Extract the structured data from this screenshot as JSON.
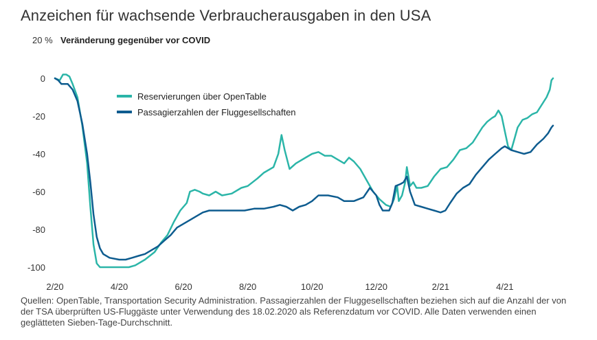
{
  "chart_data": {
    "type": "line",
    "title": "Anzeichen für wachsende Verbraucherausgaben in den USA",
    "ylabel_unit": "20 %",
    "subtitle": "Veränderung gegenüber vor COVID",
    "ylim": [
      -100,
      20
    ],
    "yticks": [
      {
        "value": 0,
        "label": "0"
      },
      {
        "value": -20,
        "label": "-20"
      },
      {
        "value": -40,
        "label": "-40"
      },
      {
        "value": -60,
        "label": "-60"
      },
      {
        "value": -80,
        "label": "-80"
      },
      {
        "value": -100,
        "label": "-100"
      }
    ],
    "xlim": [
      0,
      15.5
    ],
    "xticks": [
      {
        "value": 0,
        "label": "2/20"
      },
      {
        "value": 2,
        "label": "4/20"
      },
      {
        "value": 4,
        "label": "6/20"
      },
      {
        "value": 6,
        "label": "8/20"
      },
      {
        "value": 8,
        "label": "10/20"
      },
      {
        "value": 10,
        "label": "12/20"
      },
      {
        "value": 12,
        "label": "2/21"
      },
      {
        "value": 14,
        "label": "4/21"
      }
    ],
    "series": [
      {
        "name": "Reservierungen über OpenTable",
        "color": "#2bb5a8",
        "points": [
          [
            0,
            0
          ],
          [
            0.15,
            -1
          ],
          [
            0.25,
            2
          ],
          [
            0.35,
            2
          ],
          [
            0.45,
            1
          ],
          [
            0.55,
            -3
          ],
          [
            0.7,
            -10
          ],
          [
            0.85,
            -25
          ],
          [
            1.0,
            -45
          ],
          [
            1.1,
            -68
          ],
          [
            1.2,
            -88
          ],
          [
            1.3,
            -98
          ],
          [
            1.4,
            -100
          ],
          [
            1.7,
            -100
          ],
          [
            2.0,
            -100
          ],
          [
            2.3,
            -100
          ],
          [
            2.5,
            -99
          ],
          [
            2.8,
            -96
          ],
          [
            3.1,
            -92
          ],
          [
            3.3,
            -87
          ],
          [
            3.5,
            -83
          ],
          [
            3.7,
            -76
          ],
          [
            3.9,
            -70
          ],
          [
            4.1,
            -66
          ],
          [
            4.2,
            -60
          ],
          [
            4.35,
            -59
          ],
          [
            4.5,
            -60
          ],
          [
            4.6,
            -61
          ],
          [
            4.8,
            -62
          ],
          [
            5.0,
            -60
          ],
          [
            5.2,
            -62
          ],
          [
            5.5,
            -61
          ],
          [
            5.8,
            -58
          ],
          [
            6.0,
            -57
          ],
          [
            6.3,
            -53
          ],
          [
            6.5,
            -50
          ],
          [
            6.8,
            -47
          ],
          [
            6.95,
            -40
          ],
          [
            7.05,
            -30
          ],
          [
            7.15,
            -38
          ],
          [
            7.3,
            -48
          ],
          [
            7.5,
            -45
          ],
          [
            7.8,
            -42
          ],
          [
            8.0,
            -40
          ],
          [
            8.2,
            -39
          ],
          [
            8.4,
            -41
          ],
          [
            8.6,
            -41
          ],
          [
            8.8,
            -43
          ],
          [
            9.0,
            -45
          ],
          [
            9.15,
            -42
          ],
          [
            9.3,
            -44
          ],
          [
            9.5,
            -48
          ],
          [
            9.7,
            -54
          ],
          [
            9.9,
            -60
          ],
          [
            10.1,
            -64
          ],
          [
            10.3,
            -67
          ],
          [
            10.45,
            -68
          ],
          [
            10.55,
            -64
          ],
          [
            10.65,
            -57
          ],
          [
            10.7,
            -65
          ],
          [
            10.8,
            -62
          ],
          [
            10.9,
            -55
          ],
          [
            10.95,
            -47
          ],
          [
            11.05,
            -57
          ],
          [
            11.15,
            -55
          ],
          [
            11.25,
            -58
          ],
          [
            11.4,
            -58
          ],
          [
            11.6,
            -57
          ],
          [
            11.8,
            -52
          ],
          [
            12.0,
            -48
          ],
          [
            12.2,
            -47
          ],
          [
            12.4,
            -43
          ],
          [
            12.6,
            -38
          ],
          [
            12.8,
            -37
          ],
          [
            13.0,
            -34
          ],
          [
            13.15,
            -30
          ],
          [
            13.3,
            -26
          ],
          [
            13.45,
            -23
          ],
          [
            13.6,
            -21
          ],
          [
            13.7,
            -20
          ],
          [
            13.8,
            -17
          ],
          [
            13.9,
            -20
          ],
          [
            14.0,
            -28
          ],
          [
            14.1,
            -36
          ],
          [
            14.2,
            -38
          ],
          [
            14.3,
            -32
          ],
          [
            14.4,
            -26
          ],
          [
            14.55,
            -22
          ],
          [
            14.7,
            -21
          ],
          [
            14.85,
            -19
          ],
          [
            15.0,
            -18
          ],
          [
            15.15,
            -14
          ],
          [
            15.3,
            -10
          ],
          [
            15.4,
            -6
          ],
          [
            15.45,
            -1
          ],
          [
            15.5,
            0
          ]
        ]
      },
      {
        "name": "Passagierzahlen der Fluggesellschaften",
        "color": "#0e5c8f",
        "points": [
          [
            0,
            0
          ],
          [
            0.1,
            -1
          ],
          [
            0.2,
            -3
          ],
          [
            0.4,
            -3
          ],
          [
            0.55,
            -6
          ],
          [
            0.7,
            -12
          ],
          [
            0.85,
            -24
          ],
          [
            1.0,
            -40
          ],
          [
            1.1,
            -55
          ],
          [
            1.2,
            -72
          ],
          [
            1.3,
            -84
          ],
          [
            1.4,
            -90
          ],
          [
            1.5,
            -93
          ],
          [
            1.7,
            -95
          ],
          [
            2.0,
            -96
          ],
          [
            2.2,
            -96
          ],
          [
            2.4,
            -95
          ],
          [
            2.6,
            -94
          ],
          [
            2.8,
            -93
          ],
          [
            3.0,
            -91
          ],
          [
            3.2,
            -89
          ],
          [
            3.4,
            -86
          ],
          [
            3.6,
            -83
          ],
          [
            3.8,
            -79
          ],
          [
            4.0,
            -77
          ],
          [
            4.2,
            -75
          ],
          [
            4.4,
            -73
          ],
          [
            4.6,
            -71
          ],
          [
            4.8,
            -70
          ],
          [
            5.0,
            -70
          ],
          [
            5.3,
            -70
          ],
          [
            5.6,
            -70
          ],
          [
            5.9,
            -70
          ],
          [
            6.2,
            -69
          ],
          [
            6.5,
            -69
          ],
          [
            6.8,
            -68
          ],
          [
            7.0,
            -67
          ],
          [
            7.2,
            -68
          ],
          [
            7.4,
            -70
          ],
          [
            7.6,
            -68
          ],
          [
            7.8,
            -67
          ],
          [
            8.0,
            -65
          ],
          [
            8.2,
            -62
          ],
          [
            8.5,
            -62
          ],
          [
            8.8,
            -63
          ],
          [
            9.0,
            -65
          ],
          [
            9.3,
            -65
          ],
          [
            9.6,
            -63
          ],
          [
            9.8,
            -58
          ],
          [
            10.0,
            -62
          ],
          [
            10.1,
            -67
          ],
          [
            10.2,
            -70
          ],
          [
            10.4,
            -70
          ],
          [
            10.5,
            -66
          ],
          [
            10.6,
            -57
          ],
          [
            10.75,
            -56
          ],
          [
            10.85,
            -55
          ],
          [
            10.95,
            -52
          ],
          [
            11.05,
            -60
          ],
          [
            11.2,
            -67
          ],
          [
            11.4,
            -68
          ],
          [
            11.6,
            -69
          ],
          [
            11.8,
            -70
          ],
          [
            12.0,
            -71
          ],
          [
            12.15,
            -70
          ],
          [
            12.3,
            -66
          ],
          [
            12.5,
            -61
          ],
          [
            12.7,
            -58
          ],
          [
            12.9,
            -56
          ],
          [
            13.1,
            -51
          ],
          [
            13.3,
            -47
          ],
          [
            13.5,
            -43
          ],
          [
            13.7,
            -40
          ],
          [
            13.9,
            -37
          ],
          [
            14.0,
            -36
          ],
          [
            14.2,
            -38
          ],
          [
            14.4,
            -39
          ],
          [
            14.6,
            -40
          ],
          [
            14.8,
            -39
          ],
          [
            15.0,
            -35
          ],
          [
            15.2,
            -32
          ],
          [
            15.35,
            -29
          ],
          [
            15.45,
            -26
          ],
          [
            15.5,
            -25
          ]
        ]
      }
    ]
  },
  "source_text": "Quellen: OpenTable, Transportation Security Administration. Passagierzahlen der Fluggesellschaften beziehen sich auf die Anzahl der von der TSA überprüften US-Fluggäste unter Verwendung des 18.02.2020 als Referenzdatum vor COVID. Alle Daten verwenden einen geglätteten Sieben-Tage-Durchschnitt."
}
